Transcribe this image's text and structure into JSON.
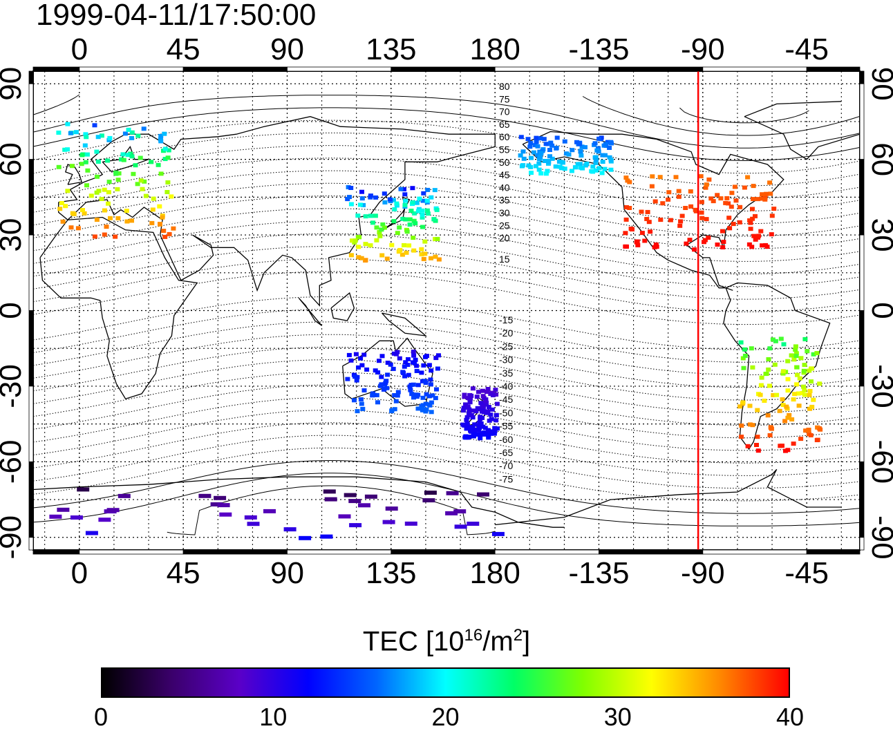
{
  "title": "1999-04-11/17:50:00",
  "map": {
    "lon_ticks": [
      0,
      45,
      90,
      135,
      180,
      -135,
      -90,
      -45
    ],
    "lat_ticks": [
      90,
      60,
      30,
      0,
      -30,
      -60,
      -90
    ],
    "lon_range": [
      -20,
      338
    ],
    "lat_range": [
      -95,
      95
    ],
    "marker_longitude": -92,
    "marker_color": "#ff0000",
    "mag_lat_labels_north": [
      "80",
      "75",
      "70",
      "65",
      "60",
      "55",
      "50",
      "45",
      "40",
      "35",
      "30",
      "25",
      "20",
      "15"
    ],
    "mag_lat_labels_south": [
      "-15",
      "-20",
      "-25",
      "-30",
      "-35",
      "-40",
      "-45",
      "-50",
      "-55",
      "-60",
      "-65",
      "-70",
      "-75"
    ]
  },
  "colorbar": {
    "label_main": "TEC  [10",
    "label_sup1": "16",
    "label_mid": "/m",
    "label_sup2": "2",
    "label_end": "]",
    "ticks": [
      "0",
      "10",
      "20",
      "30",
      "40"
    ],
    "range": [
      0,
      40
    ],
    "colors": [
      "#000000",
      "#3a006a",
      "#5a00c8",
      "#0000ff",
      "#0066ff",
      "#00ffff",
      "#00ff66",
      "#80ff00",
      "#ffff00",
      "#ff8800",
      "#ff0000"
    ]
  },
  "chart_data": {
    "type": "heatmap",
    "title": "1999-04-11/17:50:00",
    "colorbar_label": "TEC [10^16/m^2]",
    "value_range": [
      0,
      40
    ],
    "regions": [
      {
        "name": "Europe",
        "lon": [
          -10,
          40
        ],
        "lat": [
          30,
          75
        ],
        "tec": [
          14,
          38
        ]
      },
      {
        "name": "East Asia",
        "lon": [
          115,
          155
        ],
        "lat": [
          20,
          50
        ],
        "tec": [
          10,
          36
        ]
      },
      {
        "name": "North America",
        "lon": [
          -125,
          -60
        ],
        "lat": [
          25,
          55
        ],
        "tec": [
          36,
          40
        ]
      },
      {
        "name": "South America",
        "lon": [
          -75,
          -40
        ],
        "lat": [
          -55,
          -10
        ],
        "tec": [
          22,
          40
        ]
      },
      {
        "name": "Alaska/Canada",
        "lon": [
          -170,
          -130
        ],
        "lat": [
          55,
          70
        ],
        "tec": [
          14,
          20
        ]
      },
      {
        "name": "Australia",
        "lon": [
          115,
          155
        ],
        "lat": [
          -40,
          -15
        ],
        "tec": [
          10,
          16
        ]
      },
      {
        "name": "New Zealand",
        "lon": [
          165,
          180
        ],
        "lat": [
          -50,
          -30
        ],
        "tec": [
          8,
          12
        ]
      },
      {
        "name": "Antarctica",
        "lon": [
          -20,
          180
        ],
        "lat": [
          -90,
          -70
        ],
        "tec": [
          2,
          12
        ]
      }
    ]
  }
}
